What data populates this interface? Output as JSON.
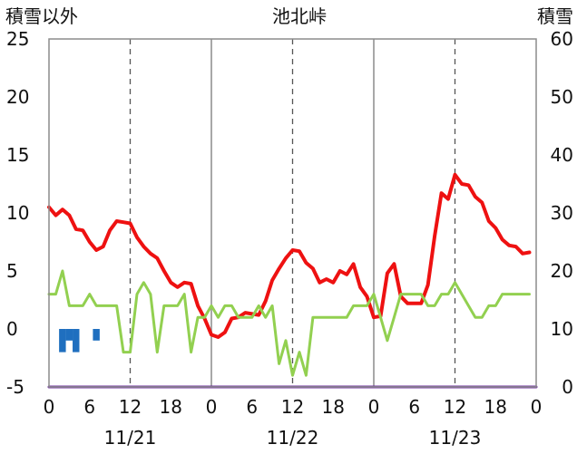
{
  "chart_data": {
    "type": "line",
    "title": "池北峠",
    "left_axis_label": "積雪以外",
    "right_axis_label": "積雪",
    "y_left": {
      "min": -5,
      "max": 25,
      "ticks": [
        "-5",
        "0",
        "5",
        "10",
        "15",
        "20",
        "25"
      ]
    },
    "y_right": {
      "min": 0,
      "max": 60,
      "ticks": [
        "0",
        "10",
        "20",
        "30",
        "40",
        "50",
        "60"
      ]
    },
    "x": {
      "min": 0,
      "max": 72,
      "tick_hours": [
        0,
        6,
        12,
        18,
        24,
        30,
        36,
        42,
        48,
        54,
        60,
        66,
        72
      ],
      "tick_labels": [
        "0",
        "6",
        "12",
        "18",
        "0",
        "6",
        "12",
        "18",
        "0",
        "6",
        "12",
        "18",
        "0"
      ]
    },
    "day_separators": [
      24,
      48
    ],
    "noon_lines": [
      12,
      36,
      60
    ],
    "dates": [
      {
        "label": "11/21",
        "hour": 12
      },
      {
        "label": "11/22",
        "hour": 36
      },
      {
        "label": "11/23",
        "hour": 60
      }
    ],
    "series": [
      {
        "color": "#ee1111",
        "axis": "left",
        "values": [
          [
            0,
            10.5
          ],
          [
            1,
            9.8
          ],
          [
            2,
            10.3
          ],
          [
            3,
            9.8
          ],
          [
            4,
            8.6
          ],
          [
            5,
            8.5
          ],
          [
            6,
            7.5
          ],
          [
            7,
            6.8
          ],
          [
            8,
            7.1
          ],
          [
            9,
            8.5
          ],
          [
            10,
            9.3
          ],
          [
            11,
            9.2
          ],
          [
            12,
            9.1
          ],
          [
            13,
            7.9
          ],
          [
            14,
            7.1
          ],
          [
            15,
            6.5
          ],
          [
            16,
            6.1
          ],
          [
            17,
            5.0
          ],
          [
            18,
            4.0
          ],
          [
            19,
            3.6
          ],
          [
            20,
            4.0
          ],
          [
            21,
            3.9
          ],
          [
            22,
            2.0
          ],
          [
            23,
            0.9
          ],
          [
            24,
            -0.5
          ],
          [
            25,
            -0.7
          ],
          [
            26,
            -0.3
          ],
          [
            27,
            0.9
          ],
          [
            28,
            1.0
          ],
          [
            29,
            1.4
          ],
          [
            30,
            1.3
          ],
          [
            31,
            1.2
          ],
          [
            32,
            2.4
          ],
          [
            33,
            4.2
          ],
          [
            34,
            5.2
          ],
          [
            35,
            6.1
          ],
          [
            36,
            6.8
          ],
          [
            37,
            6.7
          ],
          [
            38,
            5.7
          ],
          [
            39,
            5.2
          ],
          [
            40,
            4.0
          ],
          [
            41,
            4.3
          ],
          [
            42,
            4.0
          ],
          [
            43,
            5.0
          ],
          [
            44,
            4.7
          ],
          [
            45,
            5.6
          ],
          [
            46,
            3.6
          ],
          [
            47,
            2.8
          ],
          [
            48,
            1.0
          ],
          [
            49,
            1.1
          ],
          [
            50,
            4.8
          ],
          [
            51,
            5.6
          ],
          [
            52,
            2.8
          ],
          [
            53,
            2.2
          ],
          [
            54,
            2.2
          ],
          [
            55,
            2.2
          ],
          [
            56,
            3.8
          ],
          [
            57,
            8.0
          ],
          [
            58,
            11.7
          ],
          [
            59,
            11.2
          ],
          [
            60,
            13.3
          ],
          [
            61,
            12.5
          ],
          [
            62,
            12.4
          ],
          [
            63,
            11.4
          ],
          [
            64,
            10.9
          ],
          [
            65,
            9.3
          ],
          [
            66,
            8.7
          ],
          [
            67,
            7.7
          ],
          [
            68,
            7.2
          ],
          [
            69,
            7.1
          ],
          [
            70,
            6.5
          ],
          [
            71,
            6.6
          ]
        ]
      },
      {
        "color": "#92d050",
        "axis": "left",
        "values": [
          [
            0,
            3
          ],
          [
            1,
            3
          ],
          [
            2,
            5
          ],
          [
            3,
            2
          ],
          [
            4,
            2
          ],
          [
            5,
            2
          ],
          [
            6,
            3
          ],
          [
            7,
            2
          ],
          [
            8,
            2
          ],
          [
            9,
            2
          ],
          [
            10,
            2
          ],
          [
            11,
            -2
          ],
          [
            12,
            -2
          ],
          [
            13,
            3
          ],
          [
            14,
            4
          ],
          [
            15,
            3
          ],
          [
            16,
            -2
          ],
          [
            17,
            2
          ],
          [
            18,
            2
          ],
          [
            19,
            2
          ],
          [
            20,
            3
          ],
          [
            21,
            -2
          ],
          [
            22,
            1
          ],
          [
            23,
            1
          ],
          [
            24,
            2
          ],
          [
            25,
            1
          ],
          [
            26,
            2
          ],
          [
            27,
            2
          ],
          [
            28,
            1
          ],
          [
            29,
            1
          ],
          [
            30,
            1
          ],
          [
            31,
            2
          ],
          [
            32,
            1
          ],
          [
            33,
            2
          ],
          [
            34,
            -3
          ],
          [
            35,
            -1
          ],
          [
            36,
            -4
          ],
          [
            37,
            -2
          ],
          [
            38,
            -4
          ],
          [
            39,
            1
          ],
          [
            40,
            1
          ],
          [
            41,
            1
          ],
          [
            42,
            1
          ],
          [
            43,
            1
          ],
          [
            44,
            1
          ],
          [
            45,
            2
          ],
          [
            46,
            2
          ],
          [
            47,
            2
          ],
          [
            48,
            3
          ],
          [
            49,
            1
          ],
          [
            50,
            -1
          ],
          [
            51,
            1
          ],
          [
            52,
            3
          ],
          [
            53,
            3
          ],
          [
            54,
            3
          ],
          [
            55,
            3
          ],
          [
            56,
            2
          ],
          [
            57,
            2
          ],
          [
            58,
            3
          ],
          [
            59,
            3
          ],
          [
            60,
            4
          ],
          [
            61,
            3
          ],
          [
            62,
            2
          ],
          [
            63,
            1
          ],
          [
            64,
            1
          ],
          [
            65,
            2
          ],
          [
            66,
            2
          ],
          [
            67,
            3
          ],
          [
            68,
            3
          ],
          [
            69,
            3
          ],
          [
            70,
            3
          ],
          [
            71,
            3
          ]
        ]
      },
      {
        "color": "#7030a0",
        "axis": "right",
        "values": [
          [
            0,
            0
          ],
          [
            72,
            0
          ]
        ]
      }
    ],
    "bars": {
      "color": "#1f6fbf",
      "axis": "left",
      "values": [
        [
          2,
          -2
        ],
        [
          3,
          -1
        ],
        [
          4,
          -2
        ],
        [
          7,
          -1
        ]
      ]
    }
  }
}
